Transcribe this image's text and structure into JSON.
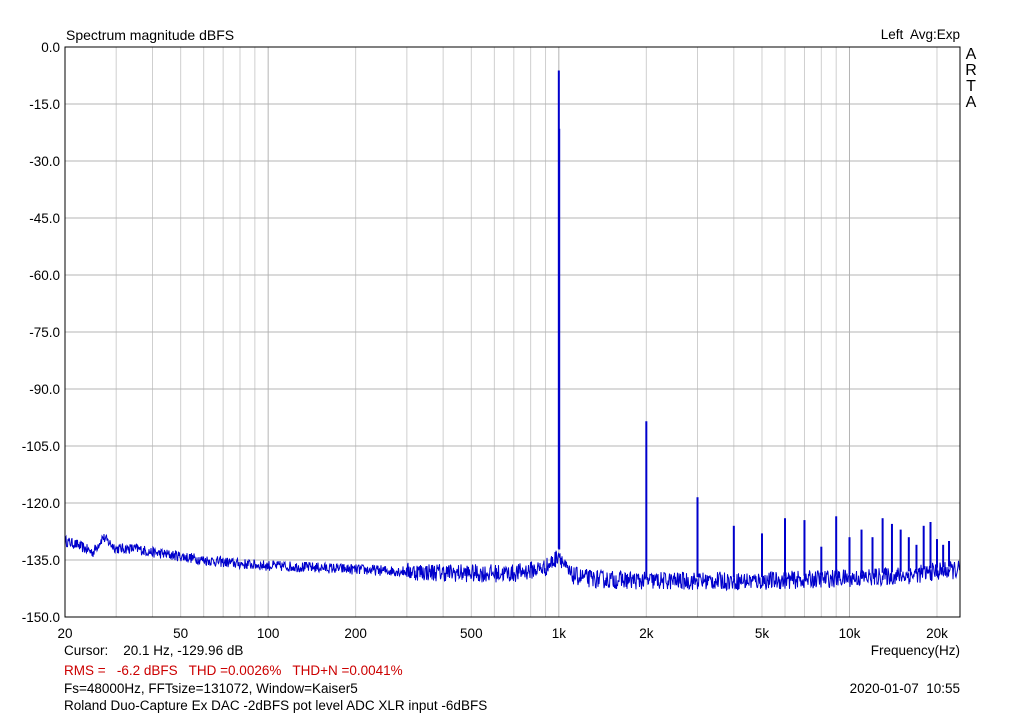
{
  "header": {
    "title": "Spectrum magnitude dBFS",
    "channel_avg": "Left  Avg:Exp",
    "brand_letters": [
      "A",
      "R",
      "T",
      "A"
    ]
  },
  "footer": {
    "cursor": "Cursor:    20.1 Hz, -129.96 dB",
    "freq_label": "Frequency(Hz)",
    "stats": "RMS =   -6.2 dBFS   THD =0.0026%   THD+N =0.0041%",
    "fs_info": "Fs=48000Hz, FFTsize=131072, Window=Kaiser5",
    "datetime": "2020-01-07  10:55",
    "description": "Roland Duo-Capture Ex DAC -2dBFS pot level ADC XLR input -6dBFS"
  },
  "colors": {
    "trace": "#0000cc",
    "grid": "#b4b4b4",
    "minor_grid": "#cfcfcf",
    "stats_text": "#cc0000",
    "frame": "#000000"
  },
  "chart_data": {
    "type": "line",
    "title": "Spectrum magnitude dBFS",
    "xlabel": "Frequency(Hz)",
    "ylabel": "",
    "x_scale": "log",
    "xlim": [
      20,
      24000
    ],
    "ylim": [
      -150,
      0
    ],
    "grid": true,
    "y_ticks": [
      0,
      -15,
      -30,
      -45,
      -60,
      -75,
      -90,
      -105,
      -120,
      -135,
      -150
    ],
    "y_tick_labels": [
      "0.0",
      "-15.0",
      "-30.0",
      "-45.0",
      "-60.0",
      "-75.0",
      "-90.0",
      "-105.0",
      "-120.0",
      "-135.0",
      "-150.0"
    ],
    "x_ticks": [
      20,
      50,
      100,
      200,
      500,
      1000,
      2000,
      5000,
      10000,
      20000
    ],
    "x_tick_labels": [
      "20",
      "50",
      "100",
      "200",
      "500",
      "1k",
      "2k",
      "5k",
      "10k",
      "20k"
    ],
    "noise_floor": {
      "x": [
        20,
        22,
        25,
        27,
        30,
        35,
        40,
        50,
        60,
        80,
        100,
        150,
        200,
        300,
        500,
        700,
        900,
        970,
        1000,
        1050,
        1100,
        1300,
        2000,
        3000,
        5000,
        8000,
        12000,
        16000,
        20000,
        24000
      ],
      "y": [
        -130,
        -131,
        -133,
        -129,
        -132,
        -132,
        -133,
        -134,
        -135,
        -136,
        -136.5,
        -137,
        -137.5,
        -138,
        -138.5,
        -138.5,
        -137,
        -135,
        -133,
        -137,
        -139,
        -140,
        -140.5,
        -140.5,
        -140.5,
        -140,
        -139.5,
        -139,
        -138,
        -137.5
      ]
    },
    "peaks": [
      {
        "x": 1000,
        "y": -6.2
      },
      {
        "x": 1003,
        "y": -21.5
      },
      {
        "x": 2000,
        "y": -98.5
      },
      {
        "x": 3000,
        "y": -118.5
      },
      {
        "x": 4000,
        "y": -126
      },
      {
        "x": 5000,
        "y": -128
      },
      {
        "x": 6000,
        "y": -124
      },
      {
        "x": 7000,
        "y": -124.5
      },
      {
        "x": 8000,
        "y": -131.5
      },
      {
        "x": 9000,
        "y": -123.5
      },
      {
        "x": 10000,
        "y": -129
      },
      {
        "x": 11000,
        "y": -127
      },
      {
        "x": 12000,
        "y": -129
      },
      {
        "x": 13000,
        "y": -124
      },
      {
        "x": 14000,
        "y": -125.5
      },
      {
        "x": 15000,
        "y": -127
      },
      {
        "x": 16000,
        "y": -129
      },
      {
        "x": 17000,
        "y": -131
      },
      {
        "x": 18000,
        "y": -126
      },
      {
        "x": 19000,
        "y": -125
      },
      {
        "x": 20000,
        "y": -129.5
      },
      {
        "x": 21000,
        "y": -131
      },
      {
        "x": 22000,
        "y": -130
      }
    ]
  }
}
